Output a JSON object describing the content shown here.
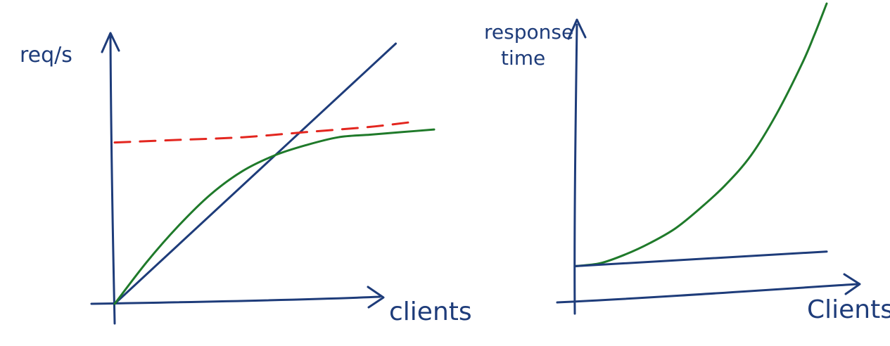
{
  "colors": {
    "ink_blue": "#1e3c7a",
    "ink_green": "#1f7a2a",
    "ink_red": "#e3261f",
    "background": "#ffffff"
  },
  "chart_data": [
    {
      "type": "line",
      "title": "",
      "xlabel": "clients",
      "ylabel": "req/s",
      "xlim": [
        0,
        1
      ],
      "ylim": [
        0,
        1
      ],
      "grid": false,
      "series": [
        {
          "color": "#1e3c7a",
          "style": "solid",
          "x": [
            0.0,
            0.88
          ],
          "y": [
            0.0,
            1.0
          ]
        },
        {
          "color": "#1f7a2a",
          "style": "solid",
          "x": [
            0.0,
            0.1,
            0.2,
            0.3,
            0.4,
            0.5,
            0.6,
            0.7,
            0.8,
            0.9,
            1.0
          ],
          "y": [
            0.0,
            0.16,
            0.3,
            0.42,
            0.51,
            0.57,
            0.61,
            0.64,
            0.65,
            0.66,
            0.67
          ]
        },
        {
          "color": "#e3261f",
          "style": "dashed",
          "x": [
            0.0,
            0.2,
            0.4,
            0.6,
            0.8,
            0.94
          ],
          "y": [
            0.62,
            0.63,
            0.64,
            0.66,
            0.68,
            0.7
          ]
        }
      ]
    },
    {
      "type": "line",
      "title": "",
      "xlabel": "Clients",
      "ylabel": "response time",
      "xlim": [
        0,
        1
      ],
      "ylim": [
        0,
        1
      ],
      "grid": false,
      "series": [
        {
          "color": "#1f7a2a",
          "style": "solid",
          "x": [
            0.0,
            0.1,
            0.2,
            0.3,
            0.4,
            0.5,
            0.6,
            0.7,
            0.8,
            0.9,
            0.95,
            1.0
          ],
          "y": [
            0.1,
            0.11,
            0.14,
            0.18,
            0.23,
            0.3,
            0.38,
            0.48,
            0.62,
            0.79,
            0.89,
            1.0
          ]
        },
        {
          "color": "#1e3c7a",
          "style": "solid",
          "x": [
            0.0,
            1.0
          ],
          "y": [
            0.1,
            0.15
          ]
        }
      ]
    }
  ]
}
